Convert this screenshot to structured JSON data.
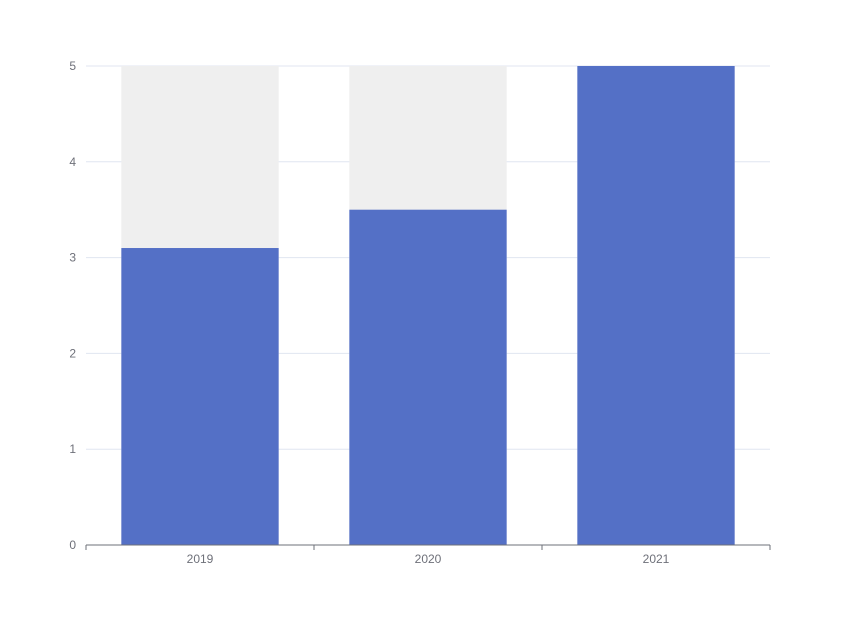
{
  "chart_data": {
    "type": "bar",
    "categories": [
      "2019",
      "2020",
      "2021"
    ],
    "series": [
      {
        "values": [
          3.1,
          3.5,
          5
        ],
        "color": "#5470c6",
        "background_color": "#efefef",
        "background_value": 5
      }
    ],
    "title": "",
    "xlabel": "",
    "ylabel": "",
    "ylim": [
      0,
      5
    ],
    "yticks": [
      "0",
      "1",
      "2",
      "3",
      "4",
      "5"
    ],
    "grid": "horizontal",
    "legend": "none"
  }
}
